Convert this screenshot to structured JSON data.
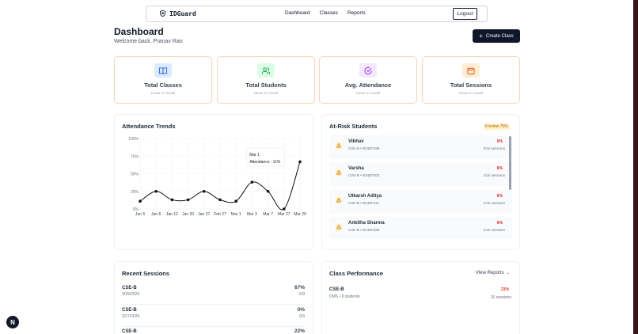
{
  "nav": {
    "brand": "IDGuard",
    "links": [
      "Dashboard",
      "Classes",
      "Reports"
    ],
    "logout": "Logout"
  },
  "header": {
    "title": "Dashboard",
    "subtitle": "Welcome back, Pranav Rao",
    "create_button": "Create Class"
  },
  "stats": [
    {
      "label": "Total Classes",
      "hint": "Hover to reveal",
      "icon": "book-icon",
      "tint": "#dbeafe",
      "stroke": "#2563eb"
    },
    {
      "label": "Total Students",
      "hint": "Hover to reveal",
      "icon": "users-icon",
      "tint": "#dcfce7",
      "stroke": "#16a34a"
    },
    {
      "label": "Avg. Attendance",
      "hint": "Hover to reveal",
      "icon": "check-circle-icon",
      "tint": "#f3e8ff",
      "stroke": "#9333ea"
    },
    {
      "label": "Total Sessions",
      "hint": "Hover to reveal",
      "icon": "calendar-icon",
      "tint": "#ffedd5",
      "stroke": "#ea580c"
    }
  ],
  "attendance": {
    "title": "Attendance Trends",
    "tooltip": {
      "date": "Mar 1",
      "text": "Attendance : 11%"
    }
  },
  "chart_data": {
    "type": "line",
    "categories": [
      "Jan 5",
      "Jan 6",
      "Jan 12",
      "Jan 20",
      "Jan 27",
      "Feb 27",
      "Mar 1",
      "Mar 3",
      "Mar 7",
      "Mar 27",
      "Mar 29"
    ],
    "values": [
      11,
      25,
      13,
      13,
      25,
      13,
      11,
      38,
      25,
      0,
      67
    ],
    "yticks": [
      "100%",
      "75%",
      "50%",
      "25%",
      "0%"
    ],
    "ylim": [
      0,
      100
    ],
    "grid": true,
    "line_color": "#111111"
  },
  "risk": {
    "title": "At-Risk Students",
    "badge": "8 below 75%",
    "students": [
      {
        "name": "Vibhav",
        "sub": "CSE-B • R24EF399",
        "pct": "0%",
        "sessions": "0/16 sessions"
      },
      {
        "name": "Varsha",
        "sub": "CSE-B • R24EF302",
        "pct": "6%",
        "sessions": "1/16 sessions"
      },
      {
        "name": "Utkarsh Aditya",
        "sub": "CSE-B • R24EF317",
        "pct": "6%",
        "sessions": "1/16 sessions"
      },
      {
        "name": "Ankitha Sharma",
        "sub": "CSE-B • R24EF388",
        "pct": "6%",
        "sessions": "1/16 sessions"
      }
    ]
  },
  "recent": {
    "title": "Recent Sessions",
    "sessions": [
      {
        "cls": "CSE-B",
        "date": "3/29/2026",
        "pct": "67%",
        "count": "6/9"
      },
      {
        "cls": "CSE-B",
        "date": "3/27/2026",
        "pct": "0%",
        "count": "0/9"
      },
      {
        "cls": "CSE-B",
        "date": "",
        "pct": "22%",
        "count": ""
      }
    ]
  },
  "performance": {
    "title": "Class Performance",
    "view_reports": "View Reports →",
    "classes": [
      {
        "cls": "CSE-B",
        "sub": "DMS • 9 students",
        "pct": "21%",
        "sessions": "16 sessions"
      }
    ]
  },
  "fab": {
    "label": "N"
  }
}
